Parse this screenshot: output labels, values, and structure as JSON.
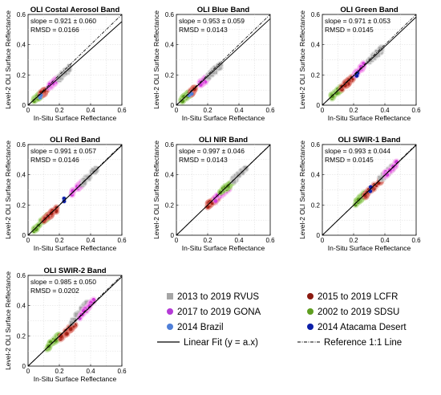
{
  "chart_data": [
    {
      "type": "scatter",
      "title": "OLI Costal Aerosol Band",
      "slope": "slope = 0.921 ± 0.060",
      "rmsd": "RMSD = 0.0166",
      "fit_slope": 0.921,
      "xlabel": "In-Situ Surface Reflectance",
      "ylabel": "Level-2 OLI Surface Reflectance",
      "xlim": [
        0,
        0.6
      ],
      "ylim": [
        0,
        0.6
      ],
      "grid": true,
      "clusters": [
        {
          "series": "2002 to 2019 SDSU",
          "x": [
            0.03,
            0.09
          ],
          "y": [
            0.025,
            0.075
          ]
        },
        {
          "series": "2015 to 2019 LCFR",
          "x": [
            0.08,
            0.12
          ],
          "y": [
            0.07,
            0.1
          ]
        },
        {
          "series": "2017 to 2019 GONA",
          "x": [
            0.13,
            0.19
          ],
          "y": [
            0.12,
            0.17
          ]
        },
        {
          "series": "2014 Brazil",
          "x": [
            0.07,
            0.09
          ],
          "y": [
            0.06,
            0.075
          ]
        },
        {
          "series": "2013 to 2019 RVUS",
          "x": [
            0.19,
            0.27
          ],
          "y": [
            0.17,
            0.25
          ]
        }
      ]
    },
    {
      "type": "scatter",
      "title": "OLI Blue Band",
      "slope": "slope = 0.953 ± 0.059",
      "rmsd": "RMSD = 0.0143",
      "fit_slope": 0.953,
      "xlabel": "In-Situ Surface Reflectance",
      "ylabel": "Level-2 OLI Surface Reflectance",
      "xlim": [
        0,
        0.6
      ],
      "ylim": [
        0,
        0.6
      ],
      "grid": true,
      "clusters": [
        {
          "series": "2002 to 2019 SDSU",
          "x": [
            0.03,
            0.09
          ],
          "y": [
            0.03,
            0.08
          ]
        },
        {
          "series": "2015 to 2019 LCFR",
          "x": [
            0.09,
            0.12
          ],
          "y": [
            0.08,
            0.11
          ]
        },
        {
          "series": "2017 to 2019 GONA",
          "x": [
            0.15,
            0.2
          ],
          "y": [
            0.14,
            0.18
          ]
        },
        {
          "series": "2014 Brazil",
          "x": [
            0.08,
            0.1
          ],
          "y": [
            0.07,
            0.09
          ]
        },
        {
          "series": "2013 to 2019 RVUS",
          "x": [
            0.2,
            0.29
          ],
          "y": [
            0.19,
            0.27
          ]
        }
      ]
    },
    {
      "type": "scatter",
      "title": "OLI Green Band",
      "slope": "slope = 0.971 ± 0.053",
      "rmsd": "RMSD = 0.0145",
      "fit_slope": 0.971,
      "xlabel": "In-Situ Surface Reflectance",
      "ylabel": "Level-2 OLI Surface Reflectance",
      "xlim": [
        0,
        0.6
      ],
      "ylim": [
        0,
        0.6
      ],
      "grid": true,
      "clusters": [
        {
          "series": "2002 to 2019 SDSU",
          "x": [
            0.05,
            0.12
          ],
          "y": [
            0.05,
            0.11
          ]
        },
        {
          "series": "2015 to 2019 LCFR",
          "x": [
            0.12,
            0.2
          ],
          "y": [
            0.11,
            0.19
          ]
        },
        {
          "series": "2017 to 2019 GONA",
          "x": [
            0.2,
            0.27
          ],
          "y": [
            0.19,
            0.27
          ]
        },
        {
          "series": "2014 Atacama Desert",
          "x": [
            0.22,
            0.23
          ],
          "y": [
            0.2,
            0.21
          ]
        },
        {
          "series": "2013 to 2019 RVUS",
          "x": [
            0.28,
            0.38
          ],
          "y": [
            0.27,
            0.37
          ]
        }
      ]
    },
    {
      "type": "scatter",
      "title": "OLI Red Band",
      "slope": "slope = 0.991 ± 0.057",
      "rmsd": "RMSD = 0.0146",
      "fit_slope": 0.991,
      "xlabel": "In-Situ Surface Reflectance",
      "ylabel": "Level-2 OLI Surface Reflectance",
      "xlim": [
        0,
        0.6
      ],
      "ylim": [
        0,
        0.6
      ],
      "grid": true,
      "clusters": [
        {
          "series": "2002 to 2019 SDSU",
          "x": [
            0.03,
            0.13
          ],
          "y": [
            0.03,
            0.13
          ]
        },
        {
          "series": "2015 to 2019 LCFR",
          "x": [
            0.1,
            0.19
          ],
          "y": [
            0.1,
            0.18
          ]
        },
        {
          "series": "2014 Atacama Desert",
          "x": [
            0.23,
            0.24
          ],
          "y": [
            0.23,
            0.24
          ]
        },
        {
          "series": "2017 to 2019 GONA",
          "x": [
            0.28,
            0.36
          ],
          "y": [
            0.28,
            0.36
          ]
        },
        {
          "series": "2013 to 2019 RVUS",
          "x": [
            0.34,
            0.44
          ],
          "y": [
            0.34,
            0.44
          ]
        }
      ]
    },
    {
      "type": "scatter",
      "title": "OLI NIR Band",
      "slope": "slope = 0.997 ± 0.046",
      "rmsd": "RMSD = 0.0143",
      "fit_slope": 0.997,
      "xlabel": "In-Situ Surface Reflectance",
      "ylabel": "Level-2 OLI Surface Reflectance",
      "xlim": [
        0,
        0.6
      ],
      "ylim": [
        0,
        0.6
      ],
      "grid": true,
      "clusters": [
        {
          "series": "2015 to 2019 LCFR",
          "x": [
            0.2,
            0.27
          ],
          "y": [
            0.2,
            0.25
          ]
        },
        {
          "series": "2017 to 2019 GONA",
          "x": [
            0.24,
            0.34
          ],
          "y": [
            0.23,
            0.32
          ]
        },
        {
          "series": "2002 to 2019 SDSU",
          "x": [
            0.28,
            0.37
          ],
          "y": [
            0.28,
            0.36
          ]
        },
        {
          "series": "2013 to 2019 RVUS",
          "x": [
            0.36,
            0.45
          ],
          "y": [
            0.36,
            0.45
          ]
        }
      ]
    },
    {
      "type": "scatter",
      "title": "OLI SWIR-1 Band",
      "slope": "slope = 0.993 ± 0.044",
      "rmsd": "RMSD = 0.0145",
      "fit_slope": 0.993,
      "xlabel": "In-Situ Surface Reflectance",
      "ylabel": "Level-2 OLI Surface Reflectance",
      "xlim": [
        0,
        0.6
      ],
      "ylim": [
        0,
        0.6
      ],
      "grid": true,
      "clusters": [
        {
          "series": "2002 to 2019 SDSU",
          "x": [
            0.2,
            0.27
          ],
          "y": [
            0.2,
            0.27
          ]
        },
        {
          "series": "2015 to 2019 LCFR",
          "x": [
            0.27,
            0.38
          ],
          "y": [
            0.26,
            0.37
          ]
        },
        {
          "series": "2014 Atacama Desert",
          "x": [
            0.3,
            0.31
          ],
          "y": [
            0.3,
            0.31
          ]
        },
        {
          "series": "2013 to 2019 RVUS",
          "x": [
            0.36,
            0.46
          ],
          "y": [
            0.36,
            0.46
          ]
        },
        {
          "series": "2017 to 2019 GONA",
          "x": [
            0.4,
            0.48
          ],
          "y": [
            0.4,
            0.48
          ]
        }
      ]
    },
    {
      "type": "scatter",
      "title": "OLI SWIR-2 Band",
      "slope": "slope = 0.985 ± 0.050",
      "rmsd": "RMSD = 0.0202",
      "fit_slope": 0.985,
      "xlabel": "In-Situ Surface Reflectance",
      "ylabel": "Level-2 OLI Surface Reflectance",
      "xlim": [
        0,
        0.6
      ],
      "ylim": [
        0,
        0.6
      ],
      "grid": true,
      "clusters": [
        {
          "series": "2002 to 2019 SDSU",
          "x": [
            0.12,
            0.2
          ],
          "y": [
            0.12,
            0.2
          ]
        },
        {
          "series": "2015 to 2019 LCFR",
          "x": [
            0.2,
            0.3
          ],
          "y": [
            0.18,
            0.28
          ]
        },
        {
          "series": "2013 to 2019 RVUS",
          "x": [
            0.27,
            0.38
          ],
          "y": [
            0.28,
            0.42
          ]
        },
        {
          "series": "2017 to 2019 GONA",
          "x": [
            0.33,
            0.42
          ],
          "y": [
            0.33,
            0.43
          ]
        }
      ]
    }
  ],
  "axis": {
    "ticks": [
      "0",
      "0.2",
      "0.4",
      "0.6"
    ]
  },
  "legend": {
    "placement": "bottom-right",
    "entries": [
      {
        "label": "2013 to 2019 RVUS",
        "color": "#a6a6a6",
        "marker": "square"
      },
      {
        "label": "2015 to 2019 LCFR",
        "color": "#8b1a10",
        "marker": "circle"
      },
      {
        "label": "2017 to 2019 GONA",
        "color": "#b43ad6",
        "marker": "circle"
      },
      {
        "label": "2002 to 2019 SDSU",
        "color": "#5f9e20",
        "marker": "circle"
      },
      {
        "label": "2014 Brazil",
        "color": "#4f7fd8",
        "marker": "circle"
      },
      {
        "label": "2014 Atacama Desert",
        "color": "#0c1fa8",
        "marker": "circle"
      },
      {
        "label": "Linear Fit (y = a.x)",
        "color": "#000000",
        "marker": "solid-line"
      },
      {
        "label": "Reference 1:1 Line",
        "color": "#000000",
        "marker": "dashdot-line"
      }
    ]
  },
  "series_colors": {
    "2013 to 2019 RVUS": {
      "fill": "#a6a6a6",
      "halo": "#d4d4d4"
    },
    "2015 to 2019 LCFR": {
      "fill": "#a52216",
      "halo": "#e07a70"
    },
    "2017 to 2019 GONA": {
      "fill": "#d23ad8",
      "halo": "#f6a9f0"
    },
    "2002 to 2019 SDSU": {
      "fill": "#5a9a1e",
      "halo": "#a9d67a"
    },
    "2014 Brazil": {
      "fill": "#4f7fd8",
      "halo": "#a9c3f0"
    },
    "2014 Atacama Desert": {
      "fill": "#0c1fa8",
      "halo": "#7f8bd8"
    }
  }
}
